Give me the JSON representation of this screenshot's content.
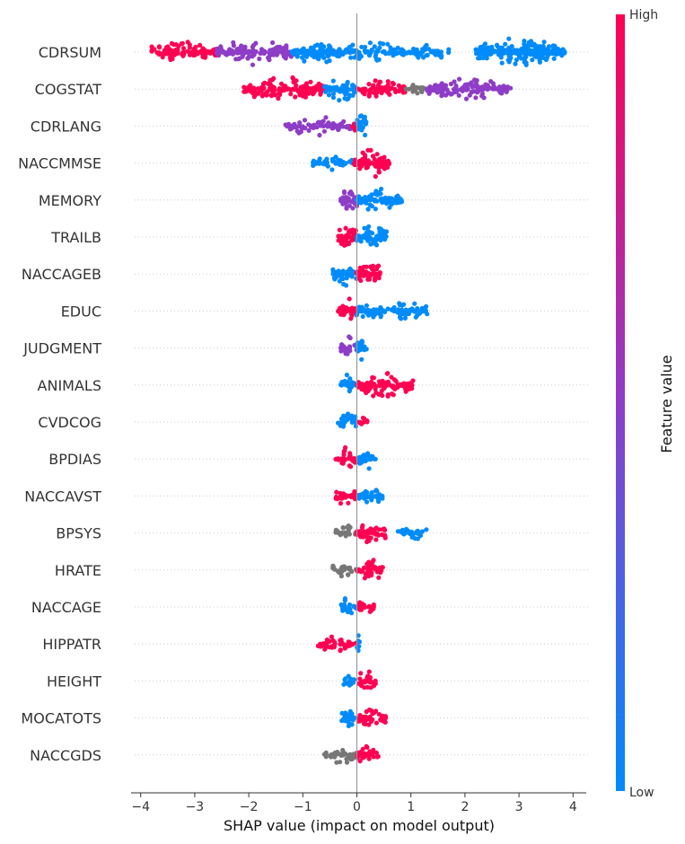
{
  "chart_data": {
    "type": "scatter",
    "subtype": "shap-beeswarm",
    "title": "",
    "xlabel": "SHAP value (impact on model output)",
    "ylabel": "",
    "xlim": [
      -4.1,
      4.2
    ],
    "x_ticks": [
      -4,
      -3,
      -2,
      -1,
      0,
      1,
      2,
      3,
      4
    ],
    "x_tick_labels": [
      "−4",
      "−3",
      "−2",
      "−1",
      "0",
      "1",
      "2",
      "3",
      "4"
    ],
    "colorbar": {
      "label": "Feature value",
      "high_label": "High",
      "low_label": "Low"
    },
    "colors": {
      "high": "#ff0052",
      "low": "#008bfb",
      "mid": "#8e3dc7",
      "missing": "#777777",
      "axis": "#999999",
      "grid": "#cccccc"
    },
    "features": [
      {
        "name": "CDRSUM",
        "segments": [
          [
            -3.8,
            -2.6,
            "high",
            1.0
          ],
          [
            -2.6,
            -1.2,
            "mid",
            1.0
          ],
          [
            -1.2,
            -0.3,
            "low",
            1.1
          ],
          [
            -0.3,
            0.9,
            "low",
            0.8
          ],
          [
            0.9,
            1.7,
            "low",
            0.6
          ],
          [
            2.2,
            3.85,
            "low",
            1.4
          ]
        ]
      },
      {
        "name": "COGSTAT",
        "segments": [
          [
            -2.1,
            -0.6,
            "high",
            1.0
          ],
          [
            -0.6,
            0.0,
            "low",
            1.0
          ],
          [
            0.0,
            0.9,
            "high",
            0.8
          ],
          [
            0.9,
            1.3,
            "missing",
            0.5
          ],
          [
            1.3,
            2.85,
            "mid",
            0.9
          ]
        ]
      },
      {
        "name": "CDRLANG",
        "segments": [
          [
            -1.35,
            -0.1,
            "mid",
            0.7
          ],
          [
            -0.1,
            0.0,
            "high",
            0.5
          ],
          [
            0.0,
            0.18,
            "low",
            1.4
          ]
        ]
      },
      {
        "name": "NACCMMSE",
        "segments": [
          [
            -0.85,
            -0.05,
            "low",
            0.6
          ],
          [
            -0.05,
            0.6,
            "high",
            1.2
          ]
        ]
      },
      {
        "name": "MEMORY",
        "segments": [
          [
            -0.3,
            0.0,
            "mid",
            1.3
          ],
          [
            0.0,
            0.85,
            "low",
            1.0
          ]
        ]
      },
      {
        "name": "TRAILB",
        "segments": [
          [
            -0.35,
            0.0,
            "high",
            1.2
          ],
          [
            0.0,
            0.55,
            "low",
            1.1
          ]
        ]
      },
      {
        "name": "NACCAGEB",
        "segments": [
          [
            -0.45,
            0.0,
            "low",
            1.0
          ],
          [
            0.0,
            0.45,
            "high",
            1.2
          ]
        ]
      },
      {
        "name": "EDUC",
        "segments": [
          [
            -0.35,
            0.0,
            "high",
            1.0
          ],
          [
            0.0,
            1.3,
            "low",
            0.9
          ]
        ]
      },
      {
        "name": "JUDGMENT",
        "segments": [
          [
            -0.3,
            0.0,
            "mid",
            0.9
          ],
          [
            0.0,
            0.18,
            "low",
            1.2
          ]
        ]
      },
      {
        "name": "ANIMALS",
        "segments": [
          [
            -0.3,
            0.0,
            "low",
            0.9
          ],
          [
            0.0,
            1.05,
            "high",
            1.0
          ]
        ]
      },
      {
        "name": "CVDCOG",
        "segments": [
          [
            -0.35,
            0.0,
            "low",
            0.8
          ],
          [
            0.0,
            0.2,
            "high",
            0.8
          ]
        ]
      },
      {
        "name": "BPDIAS",
        "segments": [
          [
            -0.4,
            0.0,
            "high",
            0.9
          ],
          [
            0.0,
            0.35,
            "low",
            0.8
          ]
        ]
      },
      {
        "name": "NACCAVST",
        "segments": [
          [
            -0.4,
            0.0,
            "high",
            0.8
          ],
          [
            0.0,
            0.48,
            "low",
            0.8
          ]
        ]
      },
      {
        "name": "BPSYS",
        "segments": [
          [
            -0.4,
            0.0,
            "missing",
            0.7
          ],
          [
            0.0,
            0.55,
            "high",
            0.9
          ],
          [
            0.75,
            1.3,
            "low",
            0.6
          ]
        ]
      },
      {
        "name": "HRATE",
        "segments": [
          [
            -0.45,
            0.0,
            "missing",
            0.7
          ],
          [
            0.0,
            0.5,
            "high",
            0.8
          ]
        ]
      },
      {
        "name": "NACCAGE",
        "segments": [
          [
            -0.3,
            0.0,
            "low",
            0.8
          ],
          [
            0.0,
            0.32,
            "high",
            0.8
          ]
        ]
      },
      {
        "name": "HIPPATR",
        "segments": [
          [
            -0.72,
            0.0,
            "high",
            0.7
          ],
          [
            0.0,
            0.06,
            "low",
            1.2
          ]
        ]
      },
      {
        "name": "HEIGHT",
        "segments": [
          [
            -0.25,
            0.0,
            "low",
            0.8
          ],
          [
            0.0,
            0.35,
            "high",
            0.8
          ]
        ]
      },
      {
        "name": "MOCATOTS",
        "segments": [
          [
            -0.28,
            0.0,
            "low",
            0.8
          ],
          [
            0.0,
            0.55,
            "high",
            0.8
          ]
        ]
      },
      {
        "name": "NACCGDS",
        "segments": [
          [
            -0.6,
            0.0,
            "missing",
            0.7
          ],
          [
            0.0,
            0.4,
            "high",
            0.8
          ]
        ]
      }
    ]
  }
}
